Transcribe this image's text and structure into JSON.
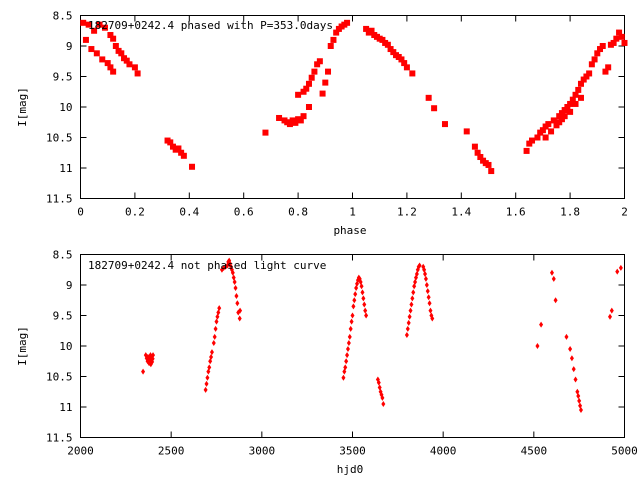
{
  "chart_data": [
    {
      "type": "scatter",
      "title": "182709+0242.4 phased with P=353.0days",
      "xlabel": "phase",
      "ylabel": "I[mag]",
      "xlim": [
        0,
        2
      ],
      "ylim": [
        8.5,
        11.5
      ],
      "y_inverted": true,
      "x_ticks": [
        0,
        0.2,
        0.4,
        0.6,
        0.8,
        1,
        1.2,
        1.4,
        1.6,
        1.8,
        2
      ],
      "x_tick_labels": [
        "0",
        "0.2",
        "0.4",
        "0.6",
        "0.8",
        "1",
        "1.2",
        "1.4",
        "1.6",
        "1.8",
        "2"
      ],
      "y_ticks": [
        8.5,
        9,
        9.5,
        10,
        10.5,
        11,
        11.5
      ],
      "y_tick_labels": [
        "8.5",
        "9",
        "9.5",
        "10",
        "10.5",
        "11",
        "11.5"
      ],
      "grid": false,
      "marker": "square",
      "color": "#ff0000",
      "points": [
        [
          0.01,
          8.62
        ],
        [
          0.02,
          8.9
        ],
        [
          0.03,
          8.65
        ],
        [
          0.04,
          9.05
        ],
        [
          0.05,
          8.75
        ],
        [
          0.06,
          9.12
        ],
        [
          0.07,
          8.65
        ],
        [
          0.08,
          9.22
        ],
        [
          0.09,
          8.7
        ],
        [
          0.1,
          9.28
        ],
        [
          0.11,
          8.82
        ],
        [
          0.11,
          9.35
        ],
        [
          0.12,
          8.88
        ],
        [
          0.12,
          9.42
        ],
        [
          0.13,
          9.0
        ],
        [
          0.14,
          9.08
        ],
        [
          0.15,
          9.12
        ],
        [
          0.16,
          9.2
        ],
        [
          0.17,
          9.24
        ],
        [
          0.18,
          9.3
        ],
        [
          0.2,
          9.35
        ],
        [
          0.21,
          9.45
        ],
        [
          0.32,
          10.55
        ],
        [
          0.33,
          10.58
        ],
        [
          0.34,
          10.65
        ],
        [
          0.35,
          10.7
        ],
        [
          0.36,
          10.68
        ],
        [
          0.37,
          10.75
        ],
        [
          0.38,
          10.8
        ],
        [
          0.41,
          10.98
        ],
        [
          0.68,
          10.42
        ],
        [
          0.73,
          10.18
        ],
        [
          0.75,
          10.22
        ],
        [
          0.76,
          10.25
        ],
        [
          0.77,
          10.28
        ],
        [
          0.78,
          10.22
        ],
        [
          0.79,
          10.26
        ],
        [
          0.8,
          10.2
        ],
        [
          0.8,
          9.8
        ],
        [
          0.81,
          10.22
        ],
        [
          0.82,
          9.75
        ],
        [
          0.82,
          10.15
        ],
        [
          0.83,
          9.7
        ],
        [
          0.84,
          10.0
        ],
        [
          0.84,
          9.62
        ],
        [
          0.85,
          9.52
        ],
        [
          0.86,
          9.42
        ],
        [
          0.87,
          9.3
        ],
        [
          0.88,
          9.25
        ],
        [
          0.89,
          9.78
        ],
        [
          0.9,
          9.6
        ],
        [
          0.91,
          9.42
        ],
        [
          0.92,
          9.0
        ],
        [
          0.93,
          8.9
        ],
        [
          0.94,
          8.78
        ],
        [
          0.95,
          8.72
        ],
        [
          0.96,
          8.68
        ],
        [
          0.97,
          8.65
        ],
        [
          0.98,
          8.62
        ],
        [
          1.05,
          8.72
        ],
        [
          1.06,
          8.78
        ],
        [
          1.07,
          8.75
        ],
        [
          1.08,
          8.82
        ],
        [
          1.09,
          8.85
        ],
        [
          1.1,
          8.88
        ],
        [
          1.11,
          8.9
        ],
        [
          1.12,
          8.95
        ],
        [
          1.13,
          8.98
        ],
        [
          1.14,
          9.05
        ],
        [
          1.15,
          9.1
        ],
        [
          1.16,
          9.15
        ],
        [
          1.17,
          9.18
        ],
        [
          1.18,
          9.22
        ],
        [
          1.19,
          9.28
        ],
        [
          1.2,
          9.35
        ],
        [
          1.22,
          9.45
        ],
        [
          1.28,
          9.85
        ],
        [
          1.3,
          10.02
        ],
        [
          1.34,
          10.28
        ],
        [
          1.42,
          10.4
        ],
        [
          1.45,
          10.65
        ],
        [
          1.46,
          10.75
        ],
        [
          1.47,
          10.82
        ],
        [
          1.48,
          10.88
        ],
        [
          1.49,
          10.92
        ],
        [
          1.5,
          10.95
        ],
        [
          1.51,
          11.05
        ],
        [
          1.64,
          10.72
        ],
        [
          1.65,
          10.6
        ],
        [
          1.66,
          10.55
        ],
        [
          1.68,
          10.5
        ],
        [
          1.69,
          10.42
        ],
        [
          1.7,
          10.38
        ],
        [
          1.71,
          10.32
        ],
        [
          1.71,
          10.5
        ],
        [
          1.72,
          10.28
        ],
        [
          1.73,
          10.4
        ],
        [
          1.74,
          10.22
        ],
        [
          1.75,
          10.3
        ],
        [
          1.76,
          10.15
        ],
        [
          1.76,
          10.25
        ],
        [
          1.77,
          10.1
        ],
        [
          1.77,
          10.2
        ],
        [
          1.78,
          10.05
        ],
        [
          1.78,
          10.15
        ],
        [
          1.79,
          10.0
        ],
        [
          1.8,
          9.95
        ],
        [
          1.8,
          10.08
        ],
        [
          1.81,
          9.88
        ],
        [
          1.82,
          9.8
        ],
        [
          1.82,
          9.95
        ],
        [
          1.83,
          9.72
        ],
        [
          1.84,
          9.62
        ],
        [
          1.84,
          9.85
        ],
        [
          1.85,
          9.55
        ],
        [
          1.86,
          9.5
        ],
        [
          1.87,
          9.45
        ],
        [
          1.88,
          9.3
        ],
        [
          1.89,
          9.22
        ],
        [
          1.9,
          9.12
        ],
        [
          1.91,
          9.05
        ],
        [
          1.92,
          9.0
        ],
        [
          1.93,
          9.42
        ],
        [
          1.94,
          9.35
        ],
        [
          1.95,
          8.98
        ],
        [
          1.96,
          8.95
        ],
        [
          1.97,
          8.88
        ],
        [
          1.98,
          8.78
        ],
        [
          1.99,
          8.85
        ],
        [
          2.0,
          8.95
        ]
      ]
    },
    {
      "type": "scatter",
      "title": "182709+0242.4 not phased light curve",
      "xlabel": "hjd0",
      "ylabel": "I[mag]",
      "xlim": [
        2000,
        5000
      ],
      "ylim": [
        8.5,
        11.5
      ],
      "y_inverted": true,
      "x_ticks": [
        2000,
        2500,
        3000,
        3500,
        4000,
        4500,
        5000
      ],
      "x_tick_labels": [
        "2000",
        "2500",
        "3000",
        "3500",
        "4000",
        "4500",
        "5000"
      ],
      "y_ticks": [
        8.5,
        9,
        9.5,
        10,
        10.5,
        11,
        11.5
      ],
      "y_tick_labels": [
        "8.5",
        "9",
        "9.5",
        "10",
        "10.5",
        "11",
        "11.5"
      ],
      "grid": false,
      "marker": "diamond",
      "color": "#ff0000",
      "points": [
        [
          2345,
          10.42
        ],
        [
          2360,
          10.15
        ],
        [
          2365,
          10.2
        ],
        [
          2370,
          10.25
        ],
        [
          2372,
          10.18
        ],
        [
          2375,
          10.22
        ],
        [
          2378,
          10.28
        ],
        [
          2380,
          10.2
        ],
        [
          2383,
          10.24
        ],
        [
          2386,
          10.15
        ],
        [
          2388,
          10.3
        ],
        [
          2390,
          10.22
        ],
        [
          2392,
          10.18
        ],
        [
          2395,
          10.26
        ],
        [
          2398,
          10.21
        ],
        [
          2400,
          10.15
        ],
        [
          2690,
          10.72
        ],
        [
          2695,
          10.62
        ],
        [
          2700,
          10.52
        ],
        [
          2705,
          10.42
        ],
        [
          2710,
          10.35
        ],
        [
          2715,
          10.25
        ],
        [
          2720,
          10.18
        ],
        [
          2725,
          10.1
        ],
        [
          2735,
          9.95
        ],
        [
          2740,
          9.85
        ],
        [
          2745,
          9.72
        ],
        [
          2750,
          9.6
        ],
        [
          2755,
          9.52
        ],
        [
          2760,
          9.45
        ],
        [
          2765,
          9.38
        ],
        [
          2780,
          8.75
        ],
        [
          2790,
          8.72
        ],
        [
          2800,
          8.7
        ],
        [
          2810,
          8.68
        ],
        [
          2815,
          8.62
        ],
        [
          2820,
          8.6
        ],
        [
          2825,
          8.65
        ],
        [
          2830,
          8.7
        ],
        [
          2835,
          8.75
        ],
        [
          2840,
          8.8
        ],
        [
          2845,
          8.88
        ],
        [
          2850,
          8.95
        ],
        [
          2855,
          9.05
        ],
        [
          2860,
          9.18
        ],
        [
          2865,
          9.3
        ],
        [
          2870,
          9.45
        ],
        [
          2878,
          9.55
        ],
        [
          2880,
          9.42
        ],
        [
          3450,
          10.52
        ],
        [
          3455,
          10.42
        ],
        [
          3460,
          10.35
        ],
        [
          3465,
          10.25
        ],
        [
          3470,
          10.15
        ],
        [
          3475,
          10.05
        ],
        [
          3480,
          9.95
        ],
        [
          3485,
          9.85
        ],
        [
          3490,
          9.72
        ],
        [
          3495,
          9.6
        ],
        [
          3500,
          9.5
        ],
        [
          3505,
          9.35
        ],
        [
          3510,
          9.25
        ],
        [
          3515,
          9.15
        ],
        [
          3520,
          9.05
        ],
        [
          3525,
          8.98
        ],
        [
          3530,
          8.92
        ],
        [
          3535,
          8.88
        ],
        [
          3540,
          8.9
        ],
        [
          3545,
          8.95
        ],
        [
          3550,
          9.02
        ],
        [
          3555,
          9.12
        ],
        [
          3560,
          9.22
        ],
        [
          3565,
          9.32
        ],
        [
          3570,
          9.42
        ],
        [
          3575,
          9.5
        ],
        [
          3640,
          10.55
        ],
        [
          3645,
          10.6
        ],
        [
          3650,
          10.68
        ],
        [
          3655,
          10.75
        ],
        [
          3660,
          10.8
        ],
        [
          3665,
          10.85
        ],
        [
          3670,
          10.95
        ],
        [
          3800,
          9.82
        ],
        [
          3805,
          9.72
        ],
        [
          3810,
          9.62
        ],
        [
          3815,
          9.52
        ],
        [
          3820,
          9.42
        ],
        [
          3825,
          9.32
        ],
        [
          3830,
          9.22
        ],
        [
          3835,
          9.12
        ],
        [
          3840,
          9.02
        ],
        [
          3845,
          8.95
        ],
        [
          3850,
          8.88
        ],
        [
          3855,
          8.82
        ],
        [
          3860,
          8.75
        ],
        [
          3865,
          8.7
        ],
        [
          3870,
          8.68
        ],
        [
          3890,
          8.7
        ],
        [
          3895,
          8.75
        ],
        [
          3900,
          8.82
        ],
        [
          3905,
          8.9
        ],
        [
          3910,
          9.0
        ],
        [
          3915,
          9.1
        ],
        [
          3920,
          9.2
        ],
        [
          3925,
          9.3
        ],
        [
          3930,
          9.42
        ],
        [
          3935,
          9.5
        ],
        [
          3940,
          9.55
        ],
        [
          4520,
          10.0
        ],
        [
          4540,
          9.65
        ],
        [
          4600,
          8.8
        ],
        [
          4610,
          8.9
        ],
        [
          4620,
          9.25
        ],
        [
          4680,
          9.85
        ],
        [
          4700,
          10.05
        ],
        [
          4710,
          10.2
        ],
        [
          4720,
          10.38
        ],
        [
          4730,
          10.55
        ],
        [
          4740,
          10.75
        ],
        [
          4745,
          10.82
        ],
        [
          4750,
          10.9
        ],
        [
          4755,
          10.98
        ],
        [
          4760,
          11.05
        ],
        [
          4920,
          9.52
        ],
        [
          4930,
          9.42
        ],
        [
          4960,
          8.78
        ],
        [
          4980,
          8.72
        ]
      ]
    }
  ]
}
